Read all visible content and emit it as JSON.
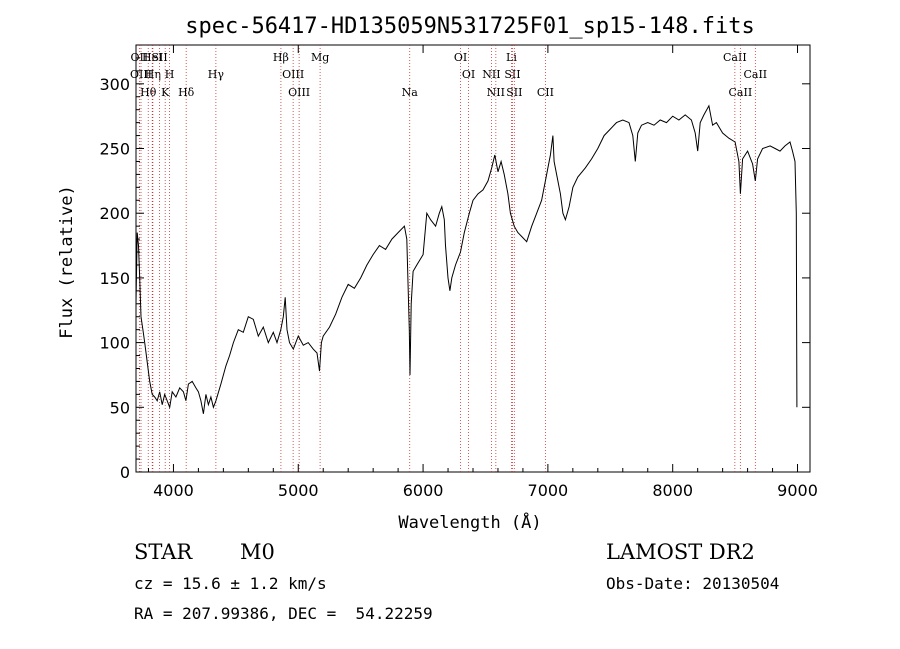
{
  "chart_data": {
    "type": "line",
    "title": "spec-56417-HD135059N531725F01_sp15-148.fits",
    "xlabel": "Wavelength (Å)",
    "ylabel": "Flux (relative)",
    "xlim": [
      3700,
      9100
    ],
    "ylim": [
      0,
      330
    ],
    "xticks": [
      4000,
      5000,
      6000,
      7000,
      8000,
      9000
    ],
    "yticks": [
      0,
      50,
      100,
      150,
      200,
      250,
      300
    ],
    "grid": false,
    "series": [
      {
        "values": [
          [
            3700,
            130
          ],
          [
            3710,
            185
          ],
          [
            3720,
            175
          ],
          [
            3730,
            150
          ],
          [
            3740,
            120
          ],
          [
            3755,
            110
          ],
          [
            3770,
            100
          ],
          [
            3790,
            85
          ],
          [
            3810,
            70
          ],
          [
            3830,
            60
          ],
          [
            3850,
            58
          ],
          [
            3870,
            55
          ],
          [
            3890,
            62
          ],
          [
            3910,
            52
          ],
          [
            3930,
            60
          ],
          [
            3950,
            55
          ],
          [
            3970,
            50
          ],
          [
            3990,
            62
          ],
          [
            4020,
            58
          ],
          [
            4050,
            65
          ],
          [
            4080,
            62
          ],
          [
            4100,
            55
          ],
          [
            4120,
            68
          ],
          [
            4150,
            70
          ],
          [
            4180,
            65
          ],
          [
            4200,
            62
          ],
          [
            4220,
            55
          ],
          [
            4240,
            45
          ],
          [
            4260,
            60
          ],
          [
            4280,
            52
          ],
          [
            4300,
            58
          ],
          [
            4320,
            50
          ],
          [
            4340,
            55
          ],
          [
            4380,
            68
          ],
          [
            4420,
            82
          ],
          [
            4450,
            90
          ],
          [
            4480,
            100
          ],
          [
            4520,
            110
          ],
          [
            4560,
            108
          ],
          [
            4600,
            120
          ],
          [
            4640,
            118
          ],
          [
            4680,
            105
          ],
          [
            4720,
            112
          ],
          [
            4760,
            100
          ],
          [
            4800,
            108
          ],
          [
            4830,
            100
          ],
          [
            4860,
            110
          ],
          [
            4880,
            120
          ],
          [
            4895,
            135
          ],
          [
            4910,
            110
          ],
          [
            4930,
            100
          ],
          [
            4960,
            95
          ],
          [
            5000,
            105
          ],
          [
            5040,
            98
          ],
          [
            5080,
            100
          ],
          [
            5120,
            95
          ],
          [
            5150,
            92
          ],
          [
            5170,
            78
          ],
          [
            5185,
            100
          ],
          [
            5200,
            105
          ],
          [
            5250,
            112
          ],
          [
            5300,
            122
          ],
          [
            5350,
            135
          ],
          [
            5400,
            145
          ],
          [
            5450,
            142
          ],
          [
            5500,
            150
          ],
          [
            5550,
            160
          ],
          [
            5600,
            168
          ],
          [
            5650,
            175
          ],
          [
            5700,
            172
          ],
          [
            5750,
            180
          ],
          [
            5800,
            185
          ],
          [
            5850,
            190
          ],
          [
            5870,
            180
          ],
          [
            5890,
            110
          ],
          [
            5895,
            75
          ],
          [
            5905,
            130
          ],
          [
            5920,
            155
          ],
          [
            5950,
            160
          ],
          [
            6000,
            168
          ],
          [
            6030,
            200
          ],
          [
            6060,
            195
          ],
          [
            6100,
            190
          ],
          [
            6130,
            200
          ],
          [
            6150,
            205
          ],
          [
            6170,
            195
          ],
          [
            6180,
            175
          ],
          [
            6200,
            150
          ],
          [
            6215,
            140
          ],
          [
            6230,
            150
          ],
          [
            6260,
            160
          ],
          [
            6300,
            170
          ],
          [
            6330,
            185
          ],
          [
            6370,
            200
          ],
          [
            6400,
            210
          ],
          [
            6440,
            215
          ],
          [
            6480,
            218
          ],
          [
            6520,
            225
          ],
          [
            6550,
            235
          ],
          [
            6575,
            245
          ],
          [
            6600,
            232
          ],
          [
            6625,
            240
          ],
          [
            6650,
            230
          ],
          [
            6680,
            215
          ],
          [
            6700,
            200
          ],
          [
            6730,
            190
          ],
          [
            6760,
            185
          ],
          [
            6790,
            182
          ],
          [
            6830,
            178
          ],
          [
            6870,
            190
          ],
          [
            6910,
            200
          ],
          [
            6950,
            210
          ],
          [
            6980,
            225
          ],
          [
            7000,
            235
          ],
          [
            7020,
            245
          ],
          [
            7040,
            260
          ],
          [
            7050,
            240
          ],
          [
            7070,
            230
          ],
          [
            7100,
            215
          ],
          [
            7120,
            200
          ],
          [
            7140,
            195
          ],
          [
            7170,
            205
          ],
          [
            7200,
            220
          ],
          [
            7240,
            228
          ],
          [
            7300,
            235
          ],
          [
            7350,
            242
          ],
          [
            7400,
            250
          ],
          [
            7450,
            260
          ],
          [
            7500,
            265
          ],
          [
            7550,
            270
          ],
          [
            7600,
            272
          ],
          [
            7650,
            270
          ],
          [
            7680,
            260
          ],
          [
            7700,
            240
          ],
          [
            7720,
            262
          ],
          [
            7750,
            268
          ],
          [
            7800,
            270
          ],
          [
            7850,
            268
          ],
          [
            7900,
            272
          ],
          [
            7950,
            270
          ],
          [
            8000,
            275
          ],
          [
            8050,
            272
          ],
          [
            8100,
            276
          ],
          [
            8150,
            272
          ],
          [
            8180,
            262
          ],
          [
            8200,
            248
          ],
          [
            8220,
            270
          ],
          [
            8250,
            276
          ],
          [
            8290,
            283
          ],
          [
            8320,
            268
          ],
          [
            8350,
            270
          ],
          [
            8400,
            262
          ],
          [
            8450,
            258
          ],
          [
            8500,
            255
          ],
          [
            8530,
            240
          ],
          [
            8542,
            215
          ],
          [
            8560,
            242
          ],
          [
            8600,
            248
          ],
          [
            8640,
            238
          ],
          [
            8662,
            225
          ],
          [
            8680,
            242
          ],
          [
            8720,
            250
          ],
          [
            8780,
            252
          ],
          [
            8820,
            250
          ],
          [
            8860,
            248
          ],
          [
            8900,
            252
          ],
          [
            8940,
            255
          ],
          [
            8960,
            248
          ],
          [
            8980,
            240
          ],
          [
            8990,
            200
          ],
          [
            8995,
            50
          ]
        ]
      }
    ],
    "lines": [
      {
        "label": "OII",
        "x": 3727,
        "row": 1
      },
      {
        "label": "OIII",
        "x": 3740,
        "row": 2
      },
      {
        "label": "Hθ",
        "x": 3798,
        "row": 3
      },
      {
        "label": "HeI",
        "x": 3830,
        "row": 1
      },
      {
        "label": "Hη",
        "x": 3835,
        "row": 2
      },
      {
        "label": "K",
        "x": 3934,
        "row": 3
      },
      {
        "label": "SII",
        "x": 3889,
        "row": 1
      },
      {
        "label": "H",
        "x": 3969,
        "row": 2
      },
      {
        "label": "Hδ",
        "x": 4102,
        "row": 3
      },
      {
        "label": "Hγ",
        "x": 4340,
        "row": 2
      },
      {
        "label": "Hβ",
        "x": 4861,
        "row": 1
      },
      {
        "label": "OIII",
        "x": 4959,
        "row": 2
      },
      {
        "label": "OIII",
        "x": 5007,
        "row": 3
      },
      {
        "label": "Mg",
        "x": 5175,
        "row": 1
      },
      {
        "label": "Na",
        "x": 5893,
        "row": 3
      },
      {
        "label": "OI",
        "x": 6300,
        "row": 1
      },
      {
        "label": "OI",
        "x": 6364,
        "row": 2
      },
      {
        "label": "NII",
        "x": 6548,
        "row": 2
      },
      {
        "label": "NII",
        "x": 6583,
        "row": 3
      },
      {
        "label": "Li",
        "x": 6708,
        "row": 1
      },
      {
        "label": "SII",
        "x": 6716,
        "row": 2
      },
      {
        "label": "SII",
        "x": 6731,
        "row": 3
      },
      {
        "label": "CII",
        "x": 6980,
        "row": 3
      },
      {
        "label": "CaII",
        "x": 8498,
        "row": 1
      },
      {
        "label": "CaII",
        "x": 8542,
        "row": 3
      },
      {
        "label": "CaII",
        "x": 8662,
        "row": 2
      }
    ]
  },
  "info": {
    "object_class": "STAR",
    "subclass": "M0",
    "survey": "LAMOST DR2",
    "redshift": "cz = 15.6 ± 1.2 km/s",
    "obs_date": "Obs-Date: 20130504",
    "coordinates": "RA = 207.99386, DEC =  54.22259"
  }
}
